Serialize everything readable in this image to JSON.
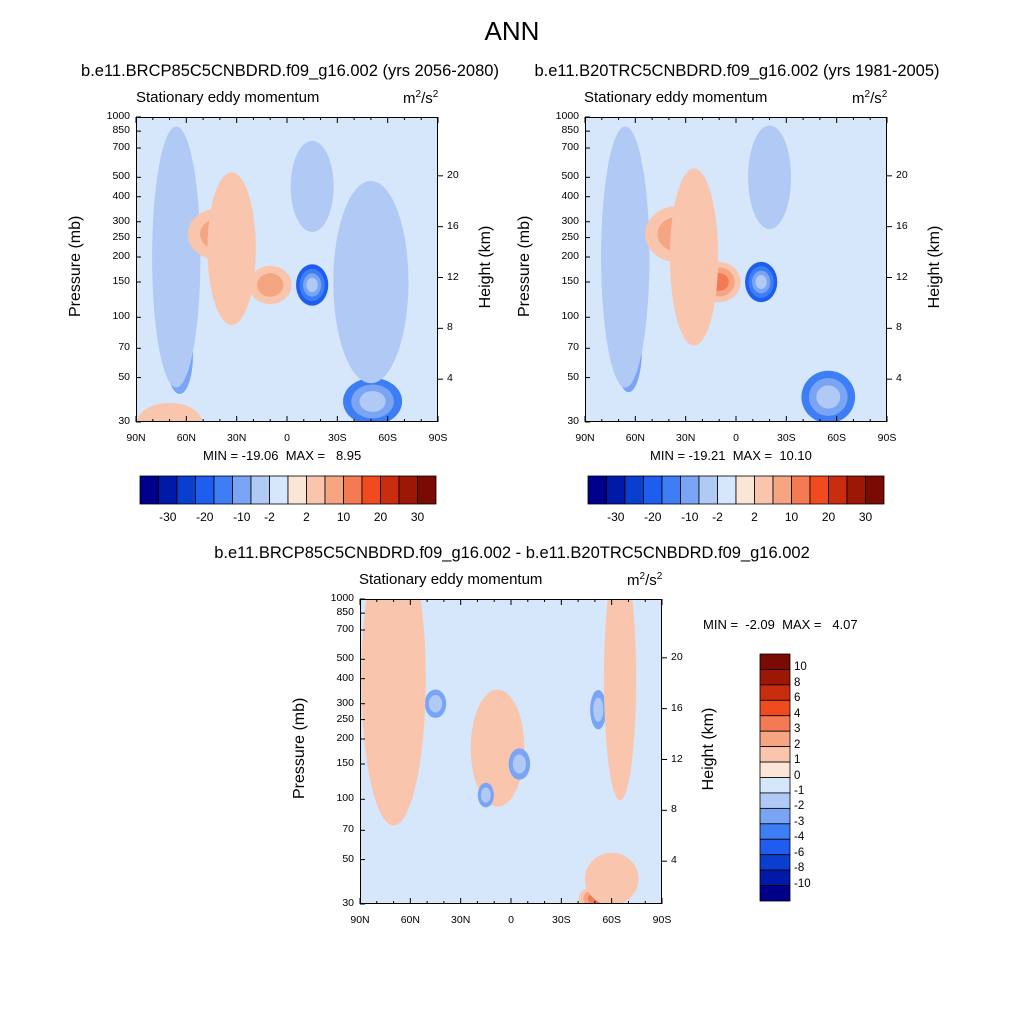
{
  "title": "ANN",
  "panels": [
    {
      "experiment": "b.e11.BRCP85C5CNBDRD.f09_g16.002 (yrs 2056-2080)",
      "subtitle": "Stationary eddy momentum",
      "units_base": "m",
      "units_exp1": "2",
      "units_mid": "/s",
      "units_exp2": "2",
      "min_max": "MIN = -19.06  MAX =   8.95"
    },
    {
      "experiment": "b.e11.B20TRC5CNBDRD.f09_g16.002 (yrs 1981-2005)",
      "subtitle": "Stationary eddy momentum",
      "units_base": "m",
      "units_exp1": "2",
      "units_mid": "/s",
      "units_exp2": "2",
      "min_max": "MIN = -19.21  MAX =  10.10"
    },
    {
      "experiment": "b.e11.BRCP85C5CNBDRD.f09_g16.002 - b.e11.B20TRC5CNBDRD.f09_g16.002",
      "subtitle": "Stationary eddy momentum",
      "units_base": "m",
      "units_exp1": "2",
      "units_mid": "/s",
      "units_exp2": "2",
      "min_max": "MIN =  -2.09  MAX =   4.07"
    }
  ],
  "axes": {
    "ylabel": "Pressure (mb)",
    "y2label": "Height (km)",
    "x_ticks": [
      "90N",
      "60N",
      "30N",
      "0",
      "30S",
      "60S",
      "90S"
    ],
    "y_ticks": [
      "30",
      "50",
      "70",
      "100",
      "150",
      "200",
      "250",
      "300",
      "400",
      "500",
      "700",
      "850",
      "1000"
    ],
    "y2_ticks": [
      "20",
      "16",
      "12",
      "8",
      "4"
    ]
  },
  "colorbars": {
    "top_labels": [
      "-30",
      "-20",
      "-10",
      "-2",
      "2",
      "10",
      "20",
      "30"
    ],
    "diff_labels": [
      "10",
      "8",
      "6",
      "4",
      "3",
      "2",
      "1",
      "0",
      "-1",
      "-2",
      "-3",
      "-4",
      "-6",
      "-8",
      "-10"
    ]
  },
  "colors": {
    "palette": [
      "#00008a",
      "#0019a8",
      "#0a3ecf",
      "#1f5cf0",
      "#3d7ef5",
      "#7aa5f5",
      "#b0c9f5",
      "#d6e6fb",
      "#fbe5d6",
      "#f9c6ad",
      "#f6a583",
      "#f47a54",
      "#f04b1e",
      "#c92d10",
      "#9c1706",
      "#7a0a04"
    ],
    "field_bg": "#d6e6fb"
  },
  "chart_data": [
    {
      "type": "heatmap",
      "title": "b.e11.BRCP85C5CNBDRD.f09_g16.002 (yrs 2056-2080)",
      "variable": "Stationary eddy momentum",
      "units": "m2/s2",
      "xlabel": "",
      "ylabel": "Pressure (mb)",
      "y2label": "Height (km)",
      "xlim": [
        90,
        -90
      ],
      "ylim_mb": [
        1000,
        30
      ],
      "y2lim_km": [
        0,
        24
      ],
      "min": -19.06,
      "max": 8.95,
      "levels": [
        -30,
        -25,
        -20,
        -15,
        -10,
        -6,
        -2,
        0,
        2,
        6,
        10,
        15,
        20,
        25,
        30
      ],
      "features": [
        {
          "lat": 64,
          "p": 65,
          "value": -8,
          "w": 5,
          "h": 50
        },
        {
          "lat": 66,
          "p": 200,
          "value": -3,
          "w": 9,
          "h": 700
        },
        {
          "lat": -51,
          "p": 38,
          "value": -10,
          "w": 11,
          "h": 18
        },
        {
          "lat": -50,
          "p": 150,
          "value": -3,
          "w": 14,
          "h": 260
        },
        {
          "lat": -15,
          "p": 145,
          "value": -19,
          "w": 6,
          "h": 55
        },
        {
          "lat": -15,
          "p": 450,
          "value": -3,
          "w": 8,
          "h": 400
        },
        {
          "lat": 10,
          "p": 145,
          "value": 9,
          "w": 8,
          "h": 50
        },
        {
          "lat": 40,
          "p": 260,
          "value": 7,
          "w": 12,
          "h": 130
        },
        {
          "lat": 33,
          "p": 220,
          "value": 4,
          "w": 9,
          "h": 300
        },
        {
          "lat": 70,
          "p": 30,
          "value": 2,
          "w": 12,
          "h": 25
        }
      ]
    },
    {
      "type": "heatmap",
      "title": "b.e11.B20TRC5CNBDRD.f09_g16.002 (yrs 1981-2005)",
      "variable": "Stationary eddy momentum",
      "units": "m2/s2",
      "xlabel": "",
      "ylabel": "Pressure (mb)",
      "y2label": "Height (km)",
      "xlim": [
        90,
        -90
      ],
      "ylim_mb": [
        1000,
        30
      ],
      "y2lim_km": [
        0,
        24
      ],
      "min": -19.21,
      "max": 10.1,
      "levels": [
        -30,
        -25,
        -20,
        -15,
        -10,
        -6,
        -2,
        0,
        2,
        6,
        10,
        15,
        20,
        25,
        30
      ],
      "features": [
        {
          "lat": 64,
          "p": 70,
          "value": -9,
          "w": 5,
          "h": 60
        },
        {
          "lat": 68,
          "p": 280,
          "value": -6,
          "w": 4,
          "h": 100
        },
        {
          "lat": 66,
          "p": 200,
          "value": -3,
          "w": 9,
          "h": 700
        },
        {
          "lat": -55,
          "p": 40,
          "value": -10,
          "w": 10,
          "h": 20
        },
        {
          "lat": -15,
          "p": 150,
          "value": -19,
          "w": 6,
          "h": 55
        },
        {
          "lat": -20,
          "p": 500,
          "value": -3,
          "w": 8,
          "h": 500
        },
        {
          "lat": 10,
          "p": 150,
          "value": 10,
          "w": 8,
          "h": 55
        },
        {
          "lat": 35,
          "p": 260,
          "value": 8,
          "w": 12,
          "h": 140
        },
        {
          "lat": 25,
          "p": 200,
          "value": 3,
          "w": 9,
          "h": 300
        }
      ]
    },
    {
      "type": "heatmap",
      "title": "b.e11.BRCP85C5CNBDRD.f09_g16.002 - b.e11.B20TRC5CNBDRD.f09_g16.002",
      "variable": "Stationary eddy momentum",
      "units": "m2/s2",
      "xlabel": "",
      "ylabel": "Pressure (mb)",
      "y2label": "Height (km)",
      "xlim": [
        90,
        -90
      ],
      "ylim_mb": [
        1000,
        30
      ],
      "y2lim_km": [
        0,
        24
      ],
      "min": -2.09,
      "max": 4.07,
      "levels": [
        -10,
        -8,
        -6,
        -4,
        -3,
        -2,
        -1,
        0,
        1,
        2,
        3,
        4,
        6,
        8,
        10
      ],
      "features": [
        {
          "lat": 10,
          "p": 180,
          "value": 3,
          "w": 4,
          "h": 70
        },
        {
          "lat": 8,
          "p": 180,
          "value": 1,
          "w": 10,
          "h": 200
        },
        {
          "lat": -5,
          "p": 150,
          "value": -2,
          "w": 4,
          "h": 40
        },
        {
          "lat": 15,
          "p": 105,
          "value": -2,
          "w": 3,
          "h": 20
        },
        {
          "lat": -50,
          "p": 32,
          "value": 3,
          "w": 6,
          "h": 8
        },
        {
          "lat": -60,
          "p": 40,
          "value": 1,
          "w": 10,
          "h": 20
        },
        {
          "lat": 45,
          "p": 300,
          "value": -2,
          "w": 4,
          "h": 70
        },
        {
          "lat": -52,
          "p": 280,
          "value": -2,
          "w": 3,
          "h": 100
        },
        {
          "lat": 70,
          "p": 400,
          "value": 1,
          "w": 12,
          "h": 800
        },
        {
          "lat": -65,
          "p": 400,
          "value": 1,
          "w": 6,
          "h": 700
        }
      ]
    }
  ]
}
